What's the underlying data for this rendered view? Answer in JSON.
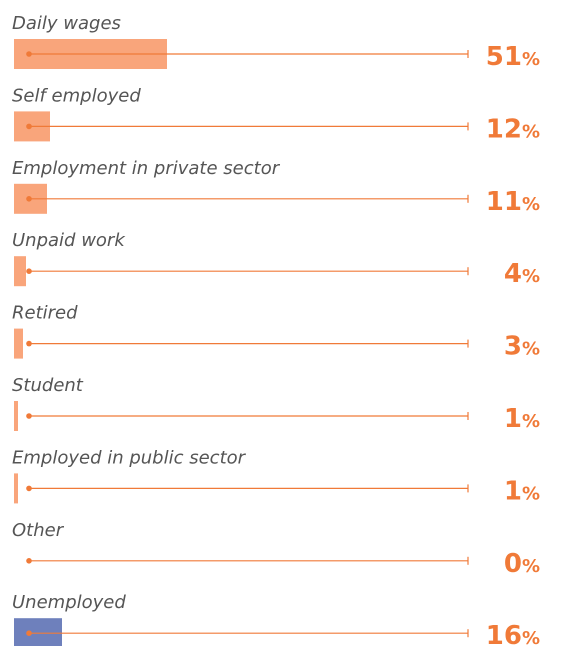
{
  "chart_data": {
    "type": "bar",
    "orientation": "horizontal",
    "categories": [
      "Daily wages",
      "Self employed",
      "Employment in private sector",
      "Unpaid work",
      "Retired",
      "Student",
      "Employed in public sector",
      "Other",
      "Unemployed"
    ],
    "display_labels": [
      "Daily wages",
      "Self employed",
      " Employment in private sector",
      "Unpaid work",
      "Retired",
      "Student",
      "Employed in public sector",
      "Other",
      "Unemployed"
    ],
    "values": [
      51,
      12,
      11,
      4,
      3,
      1,
      1,
      0,
      16
    ],
    "value_labels": [
      "51",
      "12",
      "11",
      "4",
      "3",
      "1",
      "1",
      "0",
      "16"
    ],
    "unit": "%",
    "xlim": [
      0,
      100
    ],
    "grid": false,
    "legend": "none",
    "bar_colors": [
      "#F9A57B",
      "#F9A57B",
      "#F9A57B",
      "#F9A57B",
      "#F9A57B",
      "#F9A57B",
      "#F9A57B",
      "#F9A57B",
      "#6E80BC"
    ],
    "line_color": "#F07A38",
    "value_color": "#F07A38"
  }
}
